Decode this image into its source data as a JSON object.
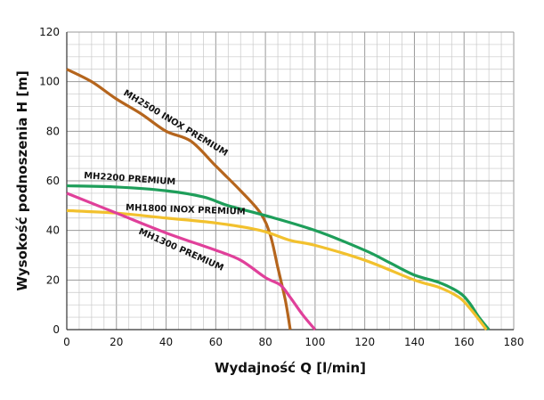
{
  "chart_data": {
    "type": "line",
    "title": "",
    "xlabel": "Wydajność Q [l/min]",
    "ylabel": "Wysokość podnoszenia H [m]",
    "xlim": [
      0,
      180
    ],
    "ylim": [
      0,
      120
    ],
    "xticks": [
      0,
      20,
      40,
      60,
      80,
      100,
      120,
      140,
      160,
      180
    ],
    "yticks": [
      0,
      20,
      40,
      60,
      80,
      100,
      120
    ],
    "grid": true,
    "series": [
      {
        "name": "MH2500 INOX PREMIUM",
        "color": "#b5651d",
        "points": [
          [
            0,
            105
          ],
          [
            10,
            100
          ],
          [
            20,
            93
          ],
          [
            30,
            87
          ],
          [
            40,
            80
          ],
          [
            50,
            76
          ],
          [
            60,
            66
          ],
          [
            70,
            56
          ],
          [
            78,
            47
          ],
          [
            82,
            38
          ],
          [
            85,
            25
          ],
          [
            88,
            12
          ],
          [
            90,
            0
          ]
        ]
      },
      {
        "name": "MH2200 PREMIUM",
        "color": "#1e9e5a",
        "points": [
          [
            0,
            58
          ],
          [
            20,
            57.5
          ],
          [
            40,
            56
          ],
          [
            55,
            53.5
          ],
          [
            65,
            50
          ],
          [
            80,
            46
          ],
          [
            100,
            40
          ],
          [
            120,
            32
          ],
          [
            130,
            27
          ],
          [
            140,
            22
          ],
          [
            150,
            19
          ],
          [
            158,
            15
          ],
          [
            162,
            11
          ],
          [
            166,
            5
          ],
          [
            170,
            0
          ]
        ]
      },
      {
        "name": "MH1800 INOX PREMIUM",
        "color": "#f2c12e",
        "points": [
          [
            0,
            48
          ],
          [
            20,
            47
          ],
          [
            40,
            45
          ],
          [
            60,
            43
          ],
          [
            78,
            40
          ],
          [
            90,
            36
          ],
          [
            100,
            34
          ],
          [
            120,
            28
          ],
          [
            140,
            20
          ],
          [
            150,
            17
          ],
          [
            158,
            13
          ],
          [
            162,
            9
          ],
          [
            166,
            4
          ],
          [
            169,
            0
          ]
        ]
      },
      {
        "name": "MH1300 PREMIUM",
        "color": "#e0409a",
        "points": [
          [
            0,
            55
          ],
          [
            20,
            47
          ],
          [
            40,
            39
          ],
          [
            60,
            32
          ],
          [
            70,
            28
          ],
          [
            80,
            21
          ],
          [
            86,
            18
          ],
          [
            90,
            13
          ],
          [
            95,
            6
          ],
          [
            100,
            0
          ]
        ]
      }
    ]
  }
}
